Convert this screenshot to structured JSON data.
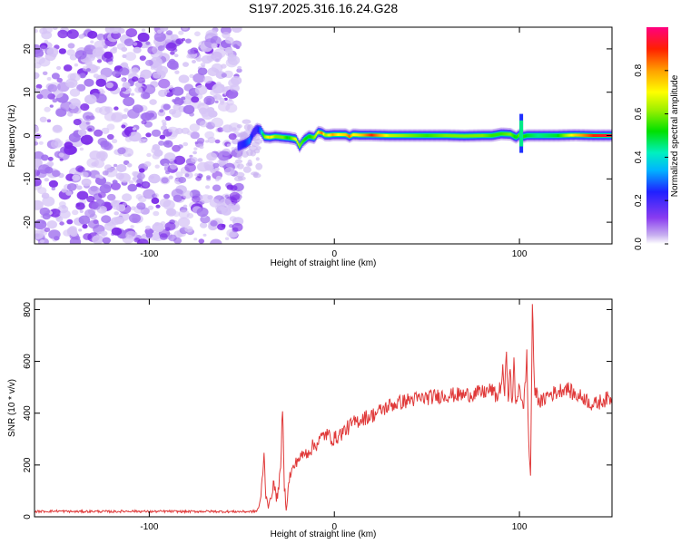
{
  "title": "S197.2025.316.16.24.G28",
  "colors": {
    "snr_line": "#e03a3a",
    "frame": "#000000",
    "ridge_hot": "#ff2020"
  },
  "chart_data": [
    {
      "type": "heatmap",
      "title": "S197.2025.316.16.24.G28",
      "xlabel": "Height of straight line (km)",
      "ylabel": "Frequency (Hz)",
      "xlim": [
        -162,
        150
      ],
      "ylim": [
        -25,
        25
      ],
      "xticks": [
        -100,
        0,
        100
      ],
      "yticks": [
        -20,
        -10,
        0,
        10,
        20
      ],
      "xtick_labels": [
        "-100",
        "0",
        "100"
      ],
      "ytick_labels": [
        "-20",
        "-10",
        "0",
        "10",
        "20"
      ],
      "noise_region_x": [
        -162,
        -51
      ],
      "ridge": {
        "x": [
          -52,
          -48,
          -46,
          -44,
          -42,
          -40,
          -38,
          -35,
          -32,
          -28,
          -25,
          -21,
          -19,
          -17,
          -14,
          -11,
          -9,
          -7,
          -5,
          -3,
          -1,
          2,
          6,
          8,
          10,
          14,
          20,
          30,
          40,
          50,
          60,
          70,
          80,
          85,
          90,
          95,
          98,
          100,
          102,
          104,
          110,
          120,
          130,
          140,
          150
        ],
        "y": [
          -2.5,
          -1.8,
          -1.2,
          0.6,
          1.5,
          1.2,
          -0.3,
          -0.4,
          -0.2,
          -0.4,
          -0.5,
          -0.8,
          -2.5,
          -1.2,
          -0.2,
          -0.5,
          0.8,
          0.6,
          0.1,
          0.1,
          0.2,
          0.2,
          0.2,
          -0.2,
          0.2,
          0.1,
          0.1,
          0.0,
          0.0,
          0.0,
          0.0,
          -0.1,
          0.0,
          0.0,
          0.4,
          0.3,
          -0.4,
          0.2,
          -0.2,
          0.0,
          0.0,
          0.0,
          0.1,
          0.0,
          0.0
        ],
        "amplitude": [
          0.2,
          0.25,
          0.3,
          0.2,
          0.2,
          0.3,
          0.6,
          0.75,
          0.6,
          0.6,
          0.5,
          0.7,
          0.6,
          0.55,
          0.5,
          0.6,
          0.7,
          0.85,
          0.6,
          0.7,
          0.8,
          0.7,
          0.75,
          0.85,
          0.7,
          0.75,
          0.9,
          0.65,
          0.6,
          0.55,
          0.6,
          0.6,
          0.6,
          0.55,
          0.55,
          0.6,
          0.5,
          0.6,
          0.55,
          0.5,
          0.45,
          0.5,
          0.75,
          0.9,
          0.95
        ]
      },
      "colorbar": {
        "label": "Normalized spectral amplitude",
        "range": [
          0.0,
          1.0
        ],
        "ticks": [
          0.0,
          0.2,
          0.4,
          0.6,
          0.8
        ],
        "tick_labels": [
          "0.0",
          "0.2",
          "0.4",
          "0.6",
          "0.8"
        ]
      }
    },
    {
      "type": "line",
      "title": "",
      "xlabel": "Height of straight line (km)",
      "ylabel": "SNR (10 * v/v)",
      "xlim": [
        -162,
        150
      ],
      "ylim": [
        0,
        840
      ],
      "xticks": [
        -100,
        0,
        100
      ],
      "yticks": [
        0,
        200,
        400,
        600,
        800
      ],
      "xtick_labels": [
        "-100",
        "0",
        "100"
      ],
      "ytick_labels": [
        "0",
        "200",
        "400",
        "600",
        "800"
      ],
      "series": [
        {
          "name": "SNR",
          "color": "#e03a3a",
          "x": [
            -162,
            -150,
            -140,
            -130,
            -120,
            -110,
            -100,
            -90,
            -80,
            -70,
            -60,
            -50,
            -45,
            -42,
            -40,
            -38,
            -37,
            -36,
            -35,
            -33,
            -31,
            -29,
            -28,
            -27,
            -26,
            -24,
            -20,
            -15,
            -10,
            -5,
            0,
            5,
            10,
            15,
            20,
            25,
            30,
            35,
            40,
            50,
            60,
            70,
            80,
            85,
            88,
            90,
            91,
            92,
            93,
            94,
            95,
            96,
            97,
            98,
            100,
            102,
            104,
            105,
            106,
            107,
            108,
            110,
            112,
            115,
            120,
            125,
            130,
            135,
            140,
            145,
            150
          ],
          "y": [
            20,
            22,
            20,
            21,
            20,
            22,
            20,
            21,
            20,
            21,
            20,
            20,
            20,
            22,
            50,
            240,
            90,
            60,
            40,
            130,
            70,
            180,
            430,
            120,
            40,
            160,
            220,
            250,
            280,
            320,
            300,
            330,
            360,
            380,
            390,
            410,
            430,
            440,
            450,
            460,
            470,
            470,
            480,
            490,
            460,
            510,
            560,
            480,
            620,
            470,
            560,
            430,
            600,
            420,
            520,
            400,
            620,
            280,
            160,
            830,
            500,
            460,
            440,
            470,
            480,
            500,
            470,
            460,
            430,
            450,
            460
          ]
        }
      ]
    }
  ]
}
